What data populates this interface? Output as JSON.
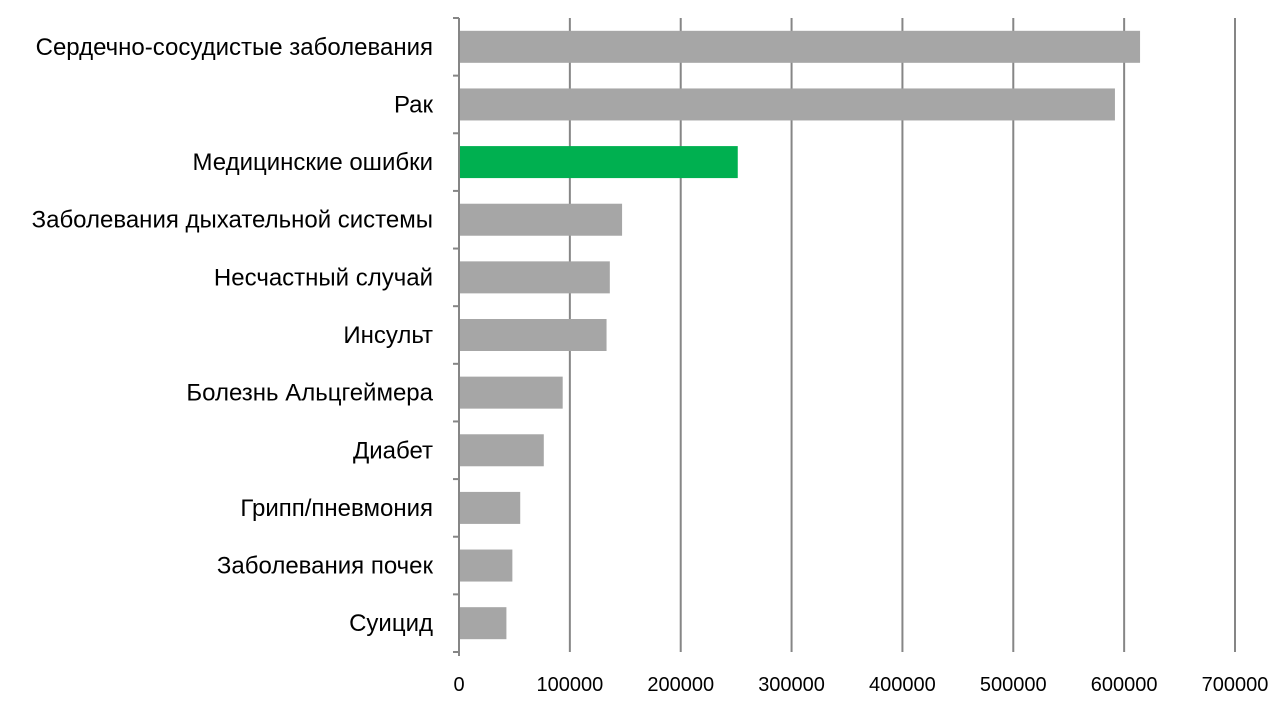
{
  "chart_data": {
    "type": "bar",
    "orientation": "horizontal",
    "title": "",
    "xlabel": "",
    "ylabel": "",
    "categories": [
      "Сердечно-сосудистые заболевания",
      "Рак",
      "Медицинские ошибки",
      "Заболевания дыхательной системы",
      "Несчастный случай",
      "Инсульт",
      "Болезнь Альцгеймера",
      "Диабет",
      "Грипп/пневмония",
      "Заболевания почек",
      "Суицид"
    ],
    "values": [
      614348,
      591699,
      251454,
      147101,
      136053,
      133103,
      93541,
      76488,
      55227,
      48146,
      42773
    ],
    "highlight_index": 2,
    "xlim": [
      0,
      700000
    ],
    "x_ticks": [
      0,
      100000,
      200000,
      300000,
      400000,
      500000,
      600000,
      700000
    ],
    "x_tick_labels": [
      "0",
      "100000",
      "200000",
      "300000",
      "400000",
      "500000",
      "600000",
      "700000"
    ],
    "grid": "vertical",
    "legend": "none",
    "colors": {
      "bar": "#a6a6a6",
      "highlight": "#00b050",
      "grid": "#868686",
      "axis": "#868686"
    }
  }
}
